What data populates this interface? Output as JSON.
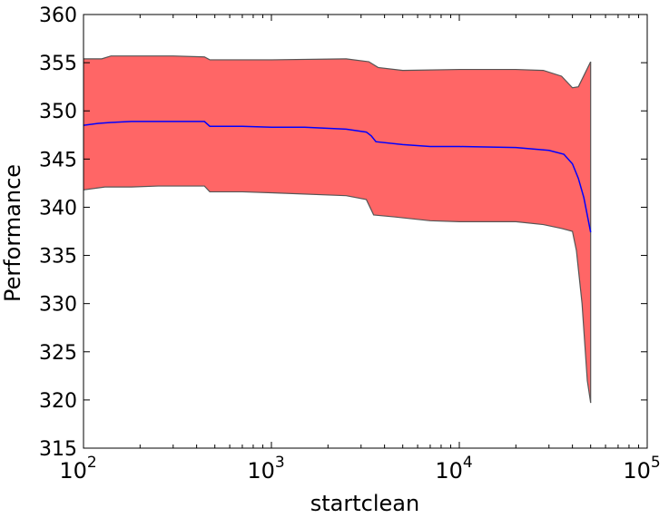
{
  "chart_data": {
    "type": "area",
    "xlabel": "startclean",
    "ylabel": "Performance",
    "xscale": "log",
    "xlim": [
      100,
      100000
    ],
    "ylim": [
      315,
      360
    ],
    "x_ticks": [
      {
        "value": 100,
        "base": "10",
        "exp": "2"
      },
      {
        "value": 1000,
        "base": "10",
        "exp": "3"
      },
      {
        "value": 10000,
        "base": "10",
        "exp": "4"
      },
      {
        "value": 100000,
        "base": "10",
        "exp": "5"
      }
    ],
    "y_ticks": [
      "315",
      "320",
      "325",
      "330",
      "335",
      "340",
      "345",
      "350",
      "355",
      "360"
    ],
    "grid": false,
    "series": [
      {
        "type": "line",
        "color": "#0000ff",
        "points": [
          [
            100,
            348.5
          ],
          [
            120,
            348.7
          ],
          [
            140,
            348.8
          ],
          [
            180,
            348.9
          ],
          [
            250,
            348.9
          ],
          [
            440,
            348.9
          ],
          [
            470,
            348.4
          ],
          [
            700,
            348.4
          ],
          [
            1000,
            348.3
          ],
          [
            1500,
            348.3
          ],
          [
            2500,
            348.1
          ],
          [
            3200,
            347.8
          ],
          [
            3400,
            347.4
          ],
          [
            3600,
            346.8
          ],
          [
            5000,
            346.5
          ],
          [
            7000,
            346.3
          ],
          [
            10000,
            346.3
          ],
          [
            20000,
            346.2
          ],
          [
            30000,
            345.9
          ],
          [
            36000,
            345.5
          ],
          [
            40000,
            344.5
          ],
          [
            43000,
            343.0
          ],
          [
            46000,
            341.0
          ],
          [
            50000,
            337.4
          ]
        ]
      },
      {
        "type": "band",
        "fill": "#ff6666",
        "edge": "#555555",
        "upper": [
          [
            100,
            355.4
          ],
          [
            125,
            355.4
          ],
          [
            140,
            355.7
          ],
          [
            200,
            355.7
          ],
          [
            300,
            355.7
          ],
          [
            440,
            355.6
          ],
          [
            470,
            355.3
          ],
          [
            700,
            355.3
          ],
          [
            1000,
            355.3
          ],
          [
            2500,
            355.4
          ],
          [
            3300,
            355.1
          ],
          [
            3700,
            354.5
          ],
          [
            5000,
            354.2
          ],
          [
            10000,
            354.3
          ],
          [
            20000,
            354.3
          ],
          [
            28000,
            354.2
          ],
          [
            35000,
            353.6
          ],
          [
            40000,
            352.4
          ],
          [
            43000,
            352.5
          ],
          [
            50000,
            355.1
          ]
        ],
        "lower": [
          [
            100,
            341.8
          ],
          [
            130,
            342.1
          ],
          [
            180,
            342.1
          ],
          [
            250,
            342.2
          ],
          [
            440,
            342.2
          ],
          [
            470,
            341.6
          ],
          [
            700,
            341.6
          ],
          [
            1000,
            341.5
          ],
          [
            2500,
            341.2
          ],
          [
            3200,
            340.8
          ],
          [
            3500,
            339.2
          ],
          [
            4500,
            339.0
          ],
          [
            7000,
            338.6
          ],
          [
            10000,
            338.5
          ],
          [
            20000,
            338.5
          ],
          [
            28000,
            338.2
          ],
          [
            35000,
            337.8
          ],
          [
            40000,
            337.5
          ],
          [
            42000,
            335.5
          ],
          [
            45000,
            330.0
          ],
          [
            48000,
            322.0
          ],
          [
            50000,
            319.7
          ]
        ]
      }
    ]
  }
}
